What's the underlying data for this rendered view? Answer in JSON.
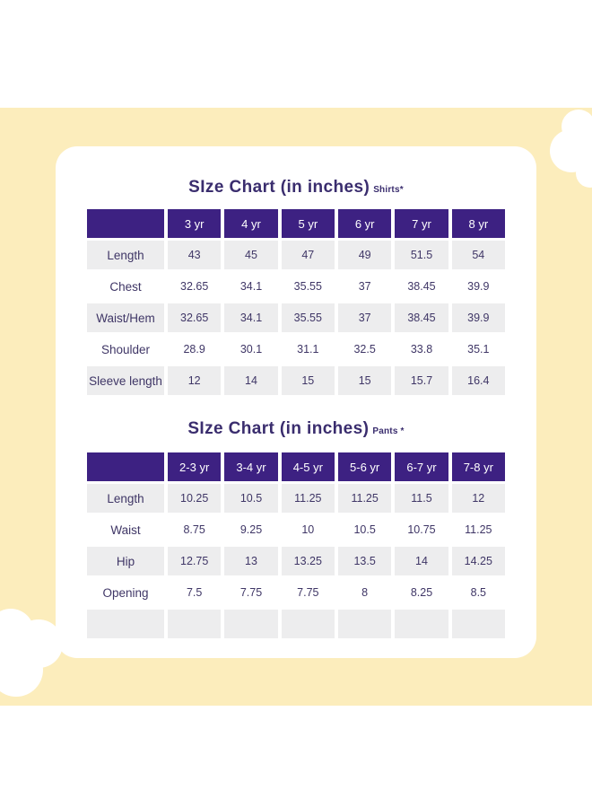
{
  "colors": {
    "accent_purple": "#3D2182",
    "header_text": "#FFFFFF",
    "row_alt_bg": "#EDEDEE",
    "cell_text": "#3F3666",
    "title_text": "#3A2D6E",
    "band_yellow": "#FCEDBC",
    "card_bg": "#FFFFFF"
  },
  "chart_data": [
    {
      "type": "table",
      "title_main": "SIze Chart  (in inches)",
      "title_tag": "Shirts*",
      "columns": [
        "",
        "3 yr",
        "4 yr",
        "5 yr",
        "6 yr",
        "7 yr",
        "8 yr"
      ],
      "rows": [
        {
          "label": "Length",
          "values": [
            "43",
            "45",
            "47",
            "49",
            "51.5",
            "54"
          ]
        },
        {
          "label": "Chest",
          "values": [
            "32.65",
            "34.1",
            "35.55",
            "37",
            "38.45",
            "39.9"
          ]
        },
        {
          "label": "Waist/Hem",
          "values": [
            "32.65",
            "34.1",
            "35.55",
            "37",
            "38.45",
            "39.9"
          ]
        },
        {
          "label": "Shoulder",
          "values": [
            "28.9",
            "30.1",
            "31.1",
            "32.5",
            "33.8",
            "35.1"
          ]
        },
        {
          "label": "Sleeve length",
          "values": [
            "12",
            "14",
            "15",
            "15",
            "15.7",
            "16.4"
          ]
        }
      ]
    },
    {
      "type": "table",
      "title_main": "SIze Chart  (in inches)",
      "title_tag": "Pants *",
      "columns": [
        "",
        "2-3 yr",
        "3-4 yr",
        "4-5 yr",
        "5-6 yr",
        "6-7 yr",
        "7-8 yr"
      ],
      "rows": [
        {
          "label": "Length",
          "values": [
            "10.25",
            "10.5",
            "11.25",
            "11.25",
            "11.5",
            "12"
          ]
        },
        {
          "label": "Waist",
          "values": [
            "8.75",
            "9.25",
            "10",
            "10.5",
            "10.75",
            "11.25"
          ]
        },
        {
          "label": "Hip",
          "values": [
            "12.75",
            "13",
            "13.25",
            "13.5",
            "14",
            "14.25"
          ]
        },
        {
          "label": "Opening",
          "values": [
            "7.5",
            "7.75",
            "7.75",
            "8",
            "8.25",
            "8.5"
          ]
        },
        {
          "label": "",
          "values": [
            "",
            "",
            "",
            "",
            "",
            ""
          ]
        }
      ]
    }
  ]
}
